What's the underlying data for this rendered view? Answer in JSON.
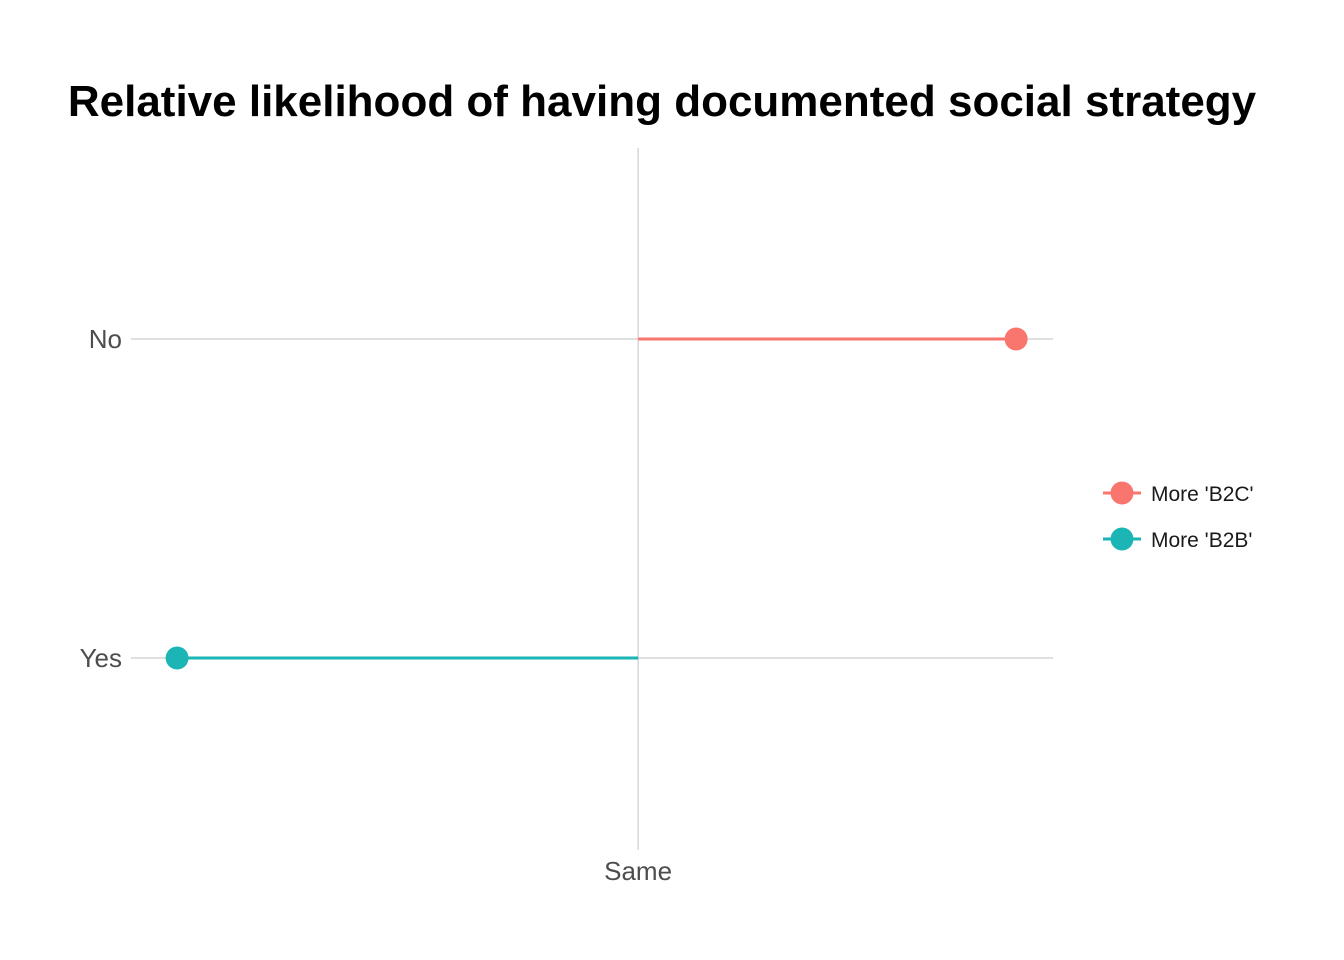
{
  "chart_data": {
    "type": "lollipop",
    "title": "Relative likelihood of having documented social strategy",
    "xlabel": "",
    "ylabel": "",
    "x_ticks": [
      {
        "value": 0,
        "label": "Same"
      }
    ],
    "xlim": [
      -1.1,
      0.9
    ],
    "categories": [
      "No",
      "Yes"
    ],
    "series": [
      {
        "name": "More 'B2C'",
        "category": "No",
        "value": 0.82,
        "color": "#F8766D"
      },
      {
        "name": "More 'B2B'",
        "category": "Yes",
        "value": -1.0,
        "color": "#1CB5B5"
      }
    ],
    "grid": {
      "major_y": true,
      "major_x": true
    },
    "legend": {
      "position": "right"
    }
  }
}
